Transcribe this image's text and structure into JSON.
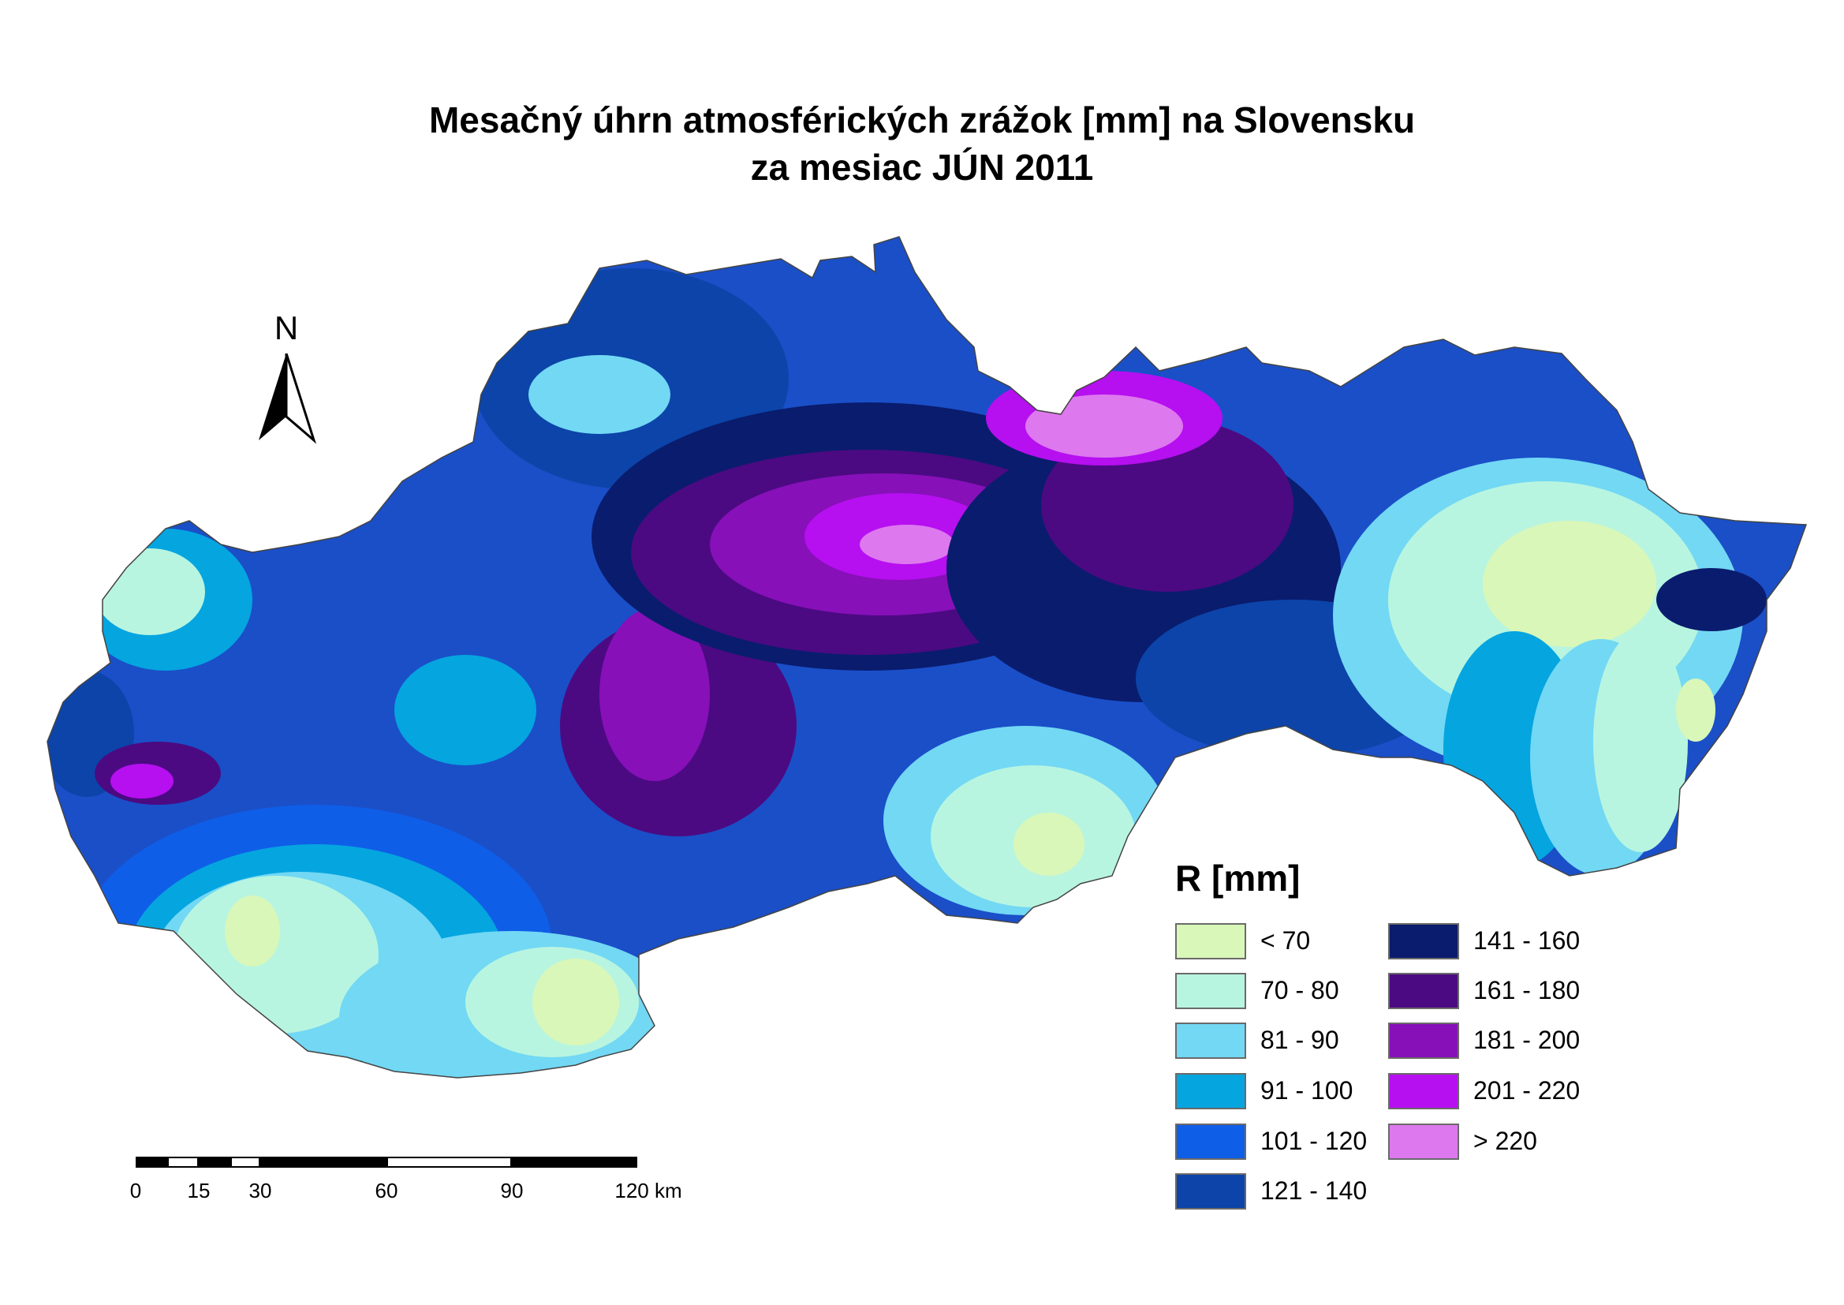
{
  "title": {
    "line1": "Mesačný úhrn atmosférických zrážok [mm] na Slovensku",
    "line2": "za mesiac JÚN 2011"
  },
  "north_arrow": {
    "label": "N"
  },
  "legend": {
    "title": "R [mm]",
    "items": [
      {
        "label": "< 70",
        "color": "#d9f7b8"
      },
      {
        "label": "70 - 80",
        "color": "#b8f5e0"
      },
      {
        "label": "81 - 90",
        "color": "#72d8f4"
      },
      {
        "label": "91 - 100",
        "color": "#05a5e0"
      },
      {
        "label": "101 - 120",
        "color": "#0f5ee8"
      },
      {
        "label": "121 - 140",
        "color": "#0c44a9"
      },
      {
        "label": "141 - 160",
        "color": "#0a1c6e"
      },
      {
        "label": "161 - 180",
        "color": "#4b0a82"
      },
      {
        "label": "181 - 200",
        "color": "#8710b8"
      },
      {
        "label": "201 - 220",
        "color": "#b60ff0"
      },
      {
        "label": "> 220",
        "color": "#dd78ee"
      }
    ]
  },
  "scale_bar": {
    "unit": "km",
    "ticks": [
      "0",
      "15",
      "30",
      "60",
      "90",
      "120 km"
    ]
  }
}
